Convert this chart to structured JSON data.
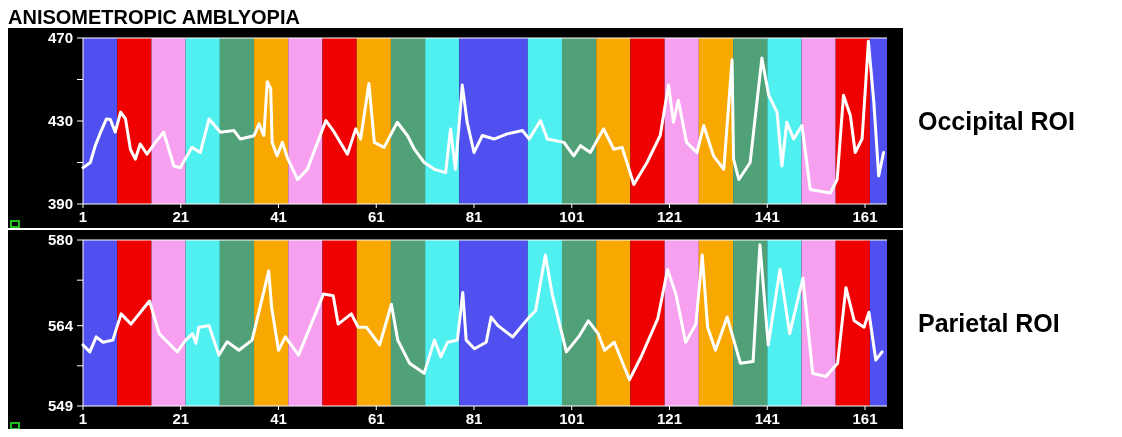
{
  "chart_data": [
    {
      "type": "line",
      "title": "ANISOMETROPIC AMBLYOPIA",
      "annotations": [
        "Occipital ROI"
      ],
      "xlim": [
        1,
        165.5
      ],
      "xticks": [
        1,
        21,
        41,
        61,
        81,
        101,
        121,
        141,
        161
      ],
      "ylim": [
        390,
        470
      ],
      "yticks": [
        390,
        {
          "value": 410,
          "label": null
        },
        430,
        {
          "value": 450,
          "label": null
        },
        470
      ],
      "bands": [
        {
          "axis": "x",
          "from": 1,
          "to": 8,
          "color": "#5050f0"
        },
        {
          "axis": "x",
          "from": 8,
          "to": 15,
          "color": "#f00000"
        },
        {
          "axis": "x",
          "from": 15,
          "to": 22,
          "color": "#f8a0f0"
        },
        {
          "axis": "x",
          "from": 22,
          "to": 29,
          "color": "#50f0f0"
        },
        {
          "axis": "x",
          "from": 29,
          "to": 36,
          "color": "#50a078"
        },
        {
          "axis": "x",
          "from": 36,
          "to": 43,
          "color": "#f8a800"
        },
        {
          "axis": "x",
          "from": 43,
          "to": 50,
          "color": "#f8a0f0"
        },
        {
          "axis": "x",
          "from": 50,
          "to": 57,
          "color": "#f00000"
        },
        {
          "axis": "x",
          "from": 57,
          "to": 64,
          "color": "#f8a800"
        },
        {
          "axis": "x",
          "from": 64,
          "to": 71,
          "color": "#50a078"
        },
        {
          "axis": "x",
          "from": 71,
          "to": 78,
          "color": "#50f0f0"
        },
        {
          "axis": "x",
          "from": 78,
          "to": 92,
          "color": "#5050f0"
        },
        {
          "axis": "x",
          "from": 92,
          "to": 99,
          "color": "#50f0f0"
        },
        {
          "axis": "x",
          "from": 99,
          "to": 106,
          "color": "#50a078"
        },
        {
          "axis": "x",
          "from": 106,
          "to": 113,
          "color": "#f8a800"
        },
        {
          "axis": "x",
          "from": 113,
          "to": 120,
          "color": "#f00000"
        },
        {
          "axis": "x",
          "from": 120,
          "to": 127,
          "color": "#f8a0f0"
        },
        {
          "axis": "x",
          "from": 127,
          "to": 134,
          "color": "#f8a800"
        },
        {
          "axis": "x",
          "from": 134,
          "to": 141,
          "color": "#50a078"
        },
        {
          "axis": "x",
          "from": 141,
          "to": 148,
          "color": "#50f0f0"
        },
        {
          "axis": "x",
          "from": 148,
          "to": 155,
          "color": "#f8a0f0"
        },
        {
          "axis": "x",
          "from": 155,
          "to": 162,
          "color": "#f00000"
        },
        {
          "axis": "x",
          "from": 162,
          "to": 165.5,
          "color": "#5050f0"
        }
      ],
      "series": [
        {
          "color": "#ffffff",
          "x": [
            1,
            2.5,
            3.5,
            4.6,
            5.8,
            6.6,
            7.6,
            8.7,
            9.7,
            10.7,
            11.7,
            12.7,
            14.1,
            15.8,
            17.5,
            19.6,
            20.9,
            23.3,
            25,
            26.8,
            29.1,
            31.9,
            33.2,
            36,
            37,
            38,
            38.7,
            39.4,
            39.7,
            40.7,
            41.8,
            42.8,
            44.9,
            46.9,
            50.7,
            52.4,
            55.1,
            56.8,
            57.8,
            59.5,
            60.6,
            62.6,
            65.3,
            67.4,
            68.8,
            70.8,
            72.9,
            75.2,
            76.2,
            77.2,
            78.6,
            79.6,
            81,
            82.7,
            85.1,
            87.8,
            90.9,
            92.3,
            94.6,
            96,
            99.4,
            101.4,
            102.8,
            104.8,
            107.5,
            109.6,
            111.3,
            113.7,
            116.4,
            119.1,
            120.8,
            121.8,
            122.8,
            124.5,
            126.6,
            128,
            130,
            132.1,
            133.8,
            134.1,
            135.2,
            137.5,
            139.9,
            141.3,
            143,
            144,
            145,
            146.4,
            148.1,
            149.8,
            153.9,
            155.3,
            156.6,
            158,
            159,
            160.4,
            161.7,
            162.8,
            163.8,
            164.8
          ],
          "values": [
            407.5,
            410,
            418,
            424.6,
            431,
            430.7,
            424.6,
            434.3,
            431,
            416.4,
            411.6,
            418.9,
            414,
            419.7,
            424.6,
            408.3,
            407.5,
            417.3,
            414.8,
            431,
            424.6,
            425.4,
            421.3,
            422.9,
            428.6,
            423,
            448.9,
            445.7,
            419.7,
            413.2,
            419.7,
            412.4,
            401.8,
            406.7,
            430.2,
            424.6,
            414,
            426.2,
            421.3,
            448.1,
            419.7,
            417.3,
            429.4,
            422.9,
            416.4,
            410,
            406.7,
            405.1,
            426.2,
            406.7,
            447.3,
            429.4,
            414.8,
            423,
            421.3,
            423.8,
            425.4,
            421.3,
            430.2,
            421.3,
            419.7,
            413.2,
            418.1,
            414.8,
            426.2,
            416.4,
            417.3,
            399.4,
            410,
            423,
            447.3,
            429.4,
            440,
            419.7,
            414.8,
            427.8,
            413.2,
            406.7,
            459.5,
            411.6,
            401.8,
            410,
            460.3,
            442.4,
            434.3,
            408.3,
            429.4,
            421.3,
            427.8,
            397,
            395.3,
            401.8,
            442.4,
            432.7,
            414.8,
            421.3,
            468.4,
            439.2,
            403.5,
            414.8
          ]
        }
      ]
    },
    {
      "type": "line",
      "annotations": [
        "Parietal ROI"
      ],
      "xlim": [
        1,
        165.5
      ],
      "xticks": [
        1,
        21,
        41,
        61,
        81,
        101,
        121,
        141,
        161
      ],
      "ylim": [
        549,
        580
      ],
      "yticks": [
        549,
        {
          "value": 556.5,
          "label": null
        },
        564,
        {
          "value": 572.5,
          "label": null
        },
        580
      ],
      "bands": [
        {
          "axis": "x",
          "from": 1,
          "to": 8,
          "color": "#5050f0"
        },
        {
          "axis": "x",
          "from": 8,
          "to": 15,
          "color": "#f00000"
        },
        {
          "axis": "x",
          "from": 15,
          "to": 22,
          "color": "#f8a0f0"
        },
        {
          "axis": "x",
          "from": 22,
          "to": 29,
          "color": "#50f0f0"
        },
        {
          "axis": "x",
          "from": 29,
          "to": 36,
          "color": "#50a078"
        },
        {
          "axis": "x",
          "from": 36,
          "to": 43,
          "color": "#f8a800"
        },
        {
          "axis": "x",
          "from": 43,
          "to": 50,
          "color": "#f8a0f0"
        },
        {
          "axis": "x",
          "from": 50,
          "to": 57,
          "color": "#f00000"
        },
        {
          "axis": "x",
          "from": 57,
          "to": 64,
          "color": "#f8a800"
        },
        {
          "axis": "x",
          "from": 64,
          "to": 71,
          "color": "#50a078"
        },
        {
          "axis": "x",
          "from": 71,
          "to": 78,
          "color": "#50f0f0"
        },
        {
          "axis": "x",
          "from": 78,
          "to": 92,
          "color": "#5050f0"
        },
        {
          "axis": "x",
          "from": 92,
          "to": 99,
          "color": "#50f0f0"
        },
        {
          "axis": "x",
          "from": 99,
          "to": 106,
          "color": "#50a078"
        },
        {
          "axis": "x",
          "from": 106,
          "to": 113,
          "color": "#f8a800"
        },
        {
          "axis": "x",
          "from": 113,
          "to": 120,
          "color": "#f00000"
        },
        {
          "axis": "x",
          "from": 120,
          "to": 127,
          "color": "#f8a0f0"
        },
        {
          "axis": "x",
          "from": 127,
          "to": 134,
          "color": "#f8a800"
        },
        {
          "axis": "x",
          "from": 134,
          "to": 141,
          "color": "#50a078"
        },
        {
          "axis": "x",
          "from": 141,
          "to": 148,
          "color": "#50f0f0"
        },
        {
          "axis": "x",
          "from": 148,
          "to": 155,
          "color": "#f8a0f0"
        },
        {
          "axis": "x",
          "from": 155,
          "to": 162,
          "color": "#f00000"
        },
        {
          "axis": "x",
          "from": 162,
          "to": 165.5,
          "color": "#5050f0"
        }
      ],
      "series": [
        {
          "color": "#ffffff",
          "x": [
            1,
            2.4,
            3.7,
            5.1,
            7.1,
            8.8,
            10.8,
            14.6,
            16.6,
            20.3,
            22,
            23.4,
            24.1,
            24.7,
            26.8,
            28.8,
            30.5,
            32.9,
            35.6,
            39,
            39.6,
            41,
            42.4,
            45.1,
            50.2,
            52.2,
            53.2,
            55.9,
            57.3,
            59,
            61.7,
            64.1,
            65.4,
            67.8,
            70.8,
            72.9,
            74.2,
            75.6,
            77.6,
            78.7,
            79.4,
            81.1,
            83.5,
            84.5,
            85.9,
            88.9,
            92.3,
            93.6,
            95.6,
            97,
            99.9,
            102.4,
            104.4,
            106.4,
            107.7,
            109.7,
            112.8,
            115.2,
            118.6,
            120.6,
            122.3,
            124.3,
            126.4,
            127.7,
            128.8,
            130.4,
            132.8,
            135.5,
            138.1,
            139.5,
            141.2,
            143.6,
            145.6,
            148.3,
            150.3,
            153,
            155.4,
            157.1,
            158.8,
            160.8,
            161.8,
            163.2,
            164.5
          ],
          "values": [
            560.4,
            559.1,
            561.9,
            560.9,
            561.3,
            566.2,
            564.3,
            568.6,
            562.5,
            559.1,
            561.3,
            562.5,
            560.7,
            563.7,
            564,
            558.5,
            561,
            559.4,
            561.3,
            574.2,
            567.4,
            559.4,
            561.9,
            558.5,
            569.9,
            569.6,
            564.3,
            566.2,
            563.7,
            563.7,
            560.4,
            568,
            561.3,
            557,
            555.1,
            561.3,
            558.2,
            560.9,
            561.3,
            570.2,
            561.3,
            559.7,
            560.9,
            565.6,
            564,
            561.9,
            565.6,
            566.8,
            577.2,
            569.9,
            559.1,
            561.9,
            564.9,
            562.5,
            559.4,
            560.9,
            553.9,
            558.2,
            565.3,
            574.5,
            569.9,
            560.9,
            564.3,
            577.2,
            563.7,
            559.4,
            565.6,
            557,
            557.3,
            579.1,
            560.4,
            574.5,
            562.5,
            572.9,
            555.1,
            554.5,
            557,
            571.1,
            564.9,
            563.7,
            566.5,
            557.6,
            559.1
          ]
        }
      ]
    }
  ]
}
